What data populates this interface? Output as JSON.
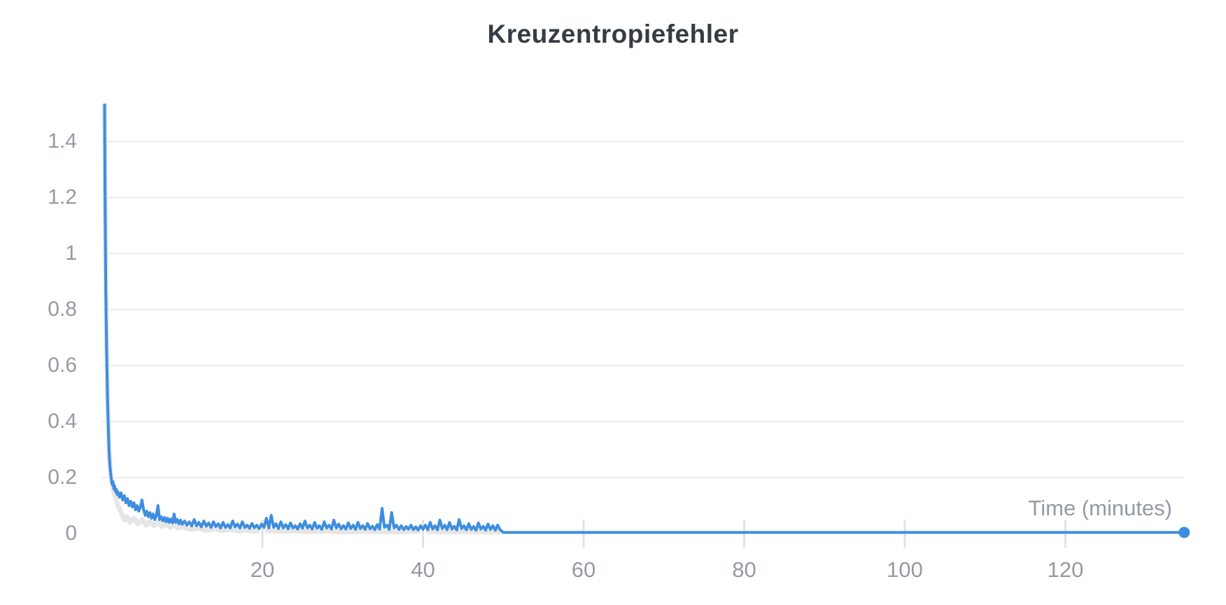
{
  "chart_data": {
    "type": "line",
    "title": "Kreuzentropiefehler",
    "xlabel": "Time (minutes)",
    "ylabel": "",
    "xlim": [
      0,
      134.8
    ],
    "ylim": [
      0,
      1.55
    ],
    "x_ticks": [
      20,
      40,
      60,
      80,
      100,
      120
    ],
    "y_ticks": [
      0,
      0.2,
      0.4,
      0.6,
      0.8,
      1,
      1.2,
      1.4
    ],
    "grid": "horizontal-only",
    "legend_position": "none",
    "colors": {
      "background": "#ffffff",
      "title": "#373c43",
      "axis_label": "#9499a4",
      "grid": "#ededed",
      "tick": "#e2e2e2",
      "line": "#3e8ede",
      "secondary_line": "#e6e6e6"
    },
    "series": [
      {
        "name": "background-trace",
        "color": "#e6e6e6",
        "stroke_width": 7,
        "end_marker": false,
        "points": [
          [
            0.35,
            1.53
          ],
          [
            0.5,
            0.9
          ],
          [
            0.7,
            0.5
          ],
          [
            0.9,
            0.3
          ],
          [
            1.1,
            0.21
          ],
          [
            1.5,
            0.15
          ],
          [
            2,
            0.1
          ],
          [
            2.5,
            0.07
          ],
          [
            2.8,
            0.05
          ],
          [
            3.1,
            0.06
          ],
          [
            3.5,
            0.04
          ],
          [
            4,
            0.055
          ],
          [
            4.5,
            0.035
          ],
          [
            5,
            0.05
          ],
          [
            5.5,
            0.03
          ],
          [
            6,
            0.045
          ],
          [
            6.5,
            0.028
          ],
          [
            7,
            0.04
          ],
          [
            7.5,
            0.025
          ],
          [
            8,
            0.035
          ],
          [
            8.5,
            0.022
          ],
          [
            9,
            0.03
          ],
          [
            9.5,
            0.02
          ],
          [
            10,
            0.025
          ],
          [
            11,
            0.015
          ],
          [
            12,
            0.02
          ],
          [
            13,
            0.012
          ],
          [
            14,
            0.018
          ],
          [
            15,
            0.01
          ],
          [
            16,
            0.015
          ],
          [
            17,
            0.009
          ],
          [
            18,
            0.013
          ],
          [
            19,
            0.008
          ],
          [
            20,
            0.012
          ],
          [
            22,
            0.008
          ],
          [
            24,
            0.01
          ],
          [
            26,
            0.007
          ],
          [
            28,
            0.009
          ],
          [
            30,
            0.006
          ],
          [
            33,
            0.008
          ],
          [
            36,
            0.006
          ],
          [
            39,
            0.008
          ],
          [
            42,
            0.006
          ],
          [
            45,
            0.007
          ],
          [
            48,
            0.006
          ],
          [
            49.5,
            0.006
          ]
        ]
      },
      {
        "name": "kreuzentropiefehler",
        "color": "#3e8ede",
        "stroke_width": 4,
        "end_marker": true,
        "points": [
          [
            0.35,
            1.53
          ],
          [
            0.4,
            1.22
          ],
          [
            0.45,
            1.02
          ],
          [
            0.5,
            0.87
          ],
          [
            0.55,
            0.75
          ],
          [
            0.6,
            0.65
          ],
          [
            0.65,
            0.57
          ],
          [
            0.7,
            0.5
          ],
          [
            0.75,
            0.44
          ],
          [
            0.8,
            0.39
          ],
          [
            0.85,
            0.34
          ],
          [
            0.9,
            0.3
          ],
          [
            0.95,
            0.27
          ],
          [
            1,
            0.245
          ],
          [
            1.1,
            0.215
          ],
          [
            1.2,
            0.19
          ],
          [
            1.3,
            0.175
          ],
          [
            1.4,
            0.185
          ],
          [
            1.5,
            0.16
          ],
          [
            1.6,
            0.17
          ],
          [
            1.7,
            0.15
          ],
          [
            1.8,
            0.158
          ],
          [
            1.9,
            0.14
          ],
          [
            2,
            0.15
          ],
          [
            2.2,
            0.13
          ],
          [
            2.4,
            0.145
          ],
          [
            2.6,
            0.12
          ],
          [
            2.8,
            0.135
          ],
          [
            3,
            0.11
          ],
          [
            3.2,
            0.125
          ],
          [
            3.4,
            0.1
          ],
          [
            3.6,
            0.115
          ],
          [
            3.8,
            0.095
          ],
          [
            4,
            0.11
          ],
          [
            4.2,
            0.085
          ],
          [
            4.4,
            0.1
          ],
          [
            4.6,
            0.08
          ],
          [
            4.8,
            0.095
          ],
          [
            5,
            0.12
          ],
          [
            5.2,
            0.085
          ],
          [
            5.4,
            0.065
          ],
          [
            5.6,
            0.08
          ],
          [
            5.8,
            0.06
          ],
          [
            6,
            0.075
          ],
          [
            6.2,
            0.055
          ],
          [
            6.4,
            0.07
          ],
          [
            6.6,
            0.05
          ],
          [
            6.8,
            0.065
          ],
          [
            7,
            0.1
          ],
          [
            7.2,
            0.05
          ],
          [
            7.4,
            0.06
          ],
          [
            7.6,
            0.045
          ],
          [
            7.8,
            0.058
          ],
          [
            8,
            0.042
          ],
          [
            8.2,
            0.055
          ],
          [
            8.4,
            0.04
          ],
          [
            8.6,
            0.052
          ],
          [
            8.8,
            0.038
          ],
          [
            9,
            0.07
          ],
          [
            9.2,
            0.04
          ],
          [
            9.4,
            0.05
          ],
          [
            9.6,
            0.035
          ],
          [
            9.8,
            0.048
          ],
          [
            10,
            0.033
          ],
          [
            10.3,
            0.045
          ],
          [
            10.6,
            0.03
          ],
          [
            10.9,
            0.042
          ],
          [
            11.2,
            0.027
          ],
          [
            11.5,
            0.05
          ],
          [
            11.8,
            0.028
          ],
          [
            12.1,
            0.04
          ],
          [
            12.4,
            0.024
          ],
          [
            12.7,
            0.045
          ],
          [
            13,
            0.026
          ],
          [
            13.3,
            0.038
          ],
          [
            13.6,
            0.022
          ],
          [
            13.9,
            0.042
          ],
          [
            14.2,
            0.025
          ],
          [
            14.5,
            0.035
          ],
          [
            14.8,
            0.02
          ],
          [
            15.1,
            0.04
          ],
          [
            15.4,
            0.022
          ],
          [
            15.7,
            0.032
          ],
          [
            16,
            0.02
          ],
          [
            16.3,
            0.045
          ],
          [
            16.6,
            0.024
          ],
          [
            16.9,
            0.034
          ],
          [
            17.2,
            0.02
          ],
          [
            17.5,
            0.042
          ],
          [
            17.8,
            0.022
          ],
          [
            18.1,
            0.03
          ],
          [
            18.4,
            0.019
          ],
          [
            18.7,
            0.036
          ],
          [
            19,
            0.021
          ],
          [
            19.3,
            0.03
          ],
          [
            19.6,
            0.018
          ],
          [
            19.9,
            0.034
          ],
          [
            20.2,
            0.022
          ],
          [
            20.5,
            0.055
          ],
          [
            20.8,
            0.02
          ],
          [
            21.1,
            0.065
          ],
          [
            21.4,
            0.022
          ],
          [
            21.7,
            0.035
          ],
          [
            22,
            0.018
          ],
          [
            22.3,
            0.042
          ],
          [
            22.6,
            0.02
          ],
          [
            22.9,
            0.032
          ],
          [
            23.2,
            0.017
          ],
          [
            23.5,
            0.038
          ],
          [
            23.8,
            0.02
          ],
          [
            24.1,
            0.028
          ],
          [
            24.4,
            0.016
          ],
          [
            24.7,
            0.035
          ],
          [
            25,
            0.019
          ],
          [
            25.3,
            0.045
          ],
          [
            25.6,
            0.02
          ],
          [
            25.9,
            0.03
          ],
          [
            26.2,
            0.016
          ],
          [
            26.5,
            0.04
          ],
          [
            26.8,
            0.019
          ],
          [
            27.1,
            0.028
          ],
          [
            27.4,
            0.015
          ],
          [
            27.7,
            0.042
          ],
          [
            28,
            0.02
          ],
          [
            28.3,
            0.03
          ],
          [
            28.6,
            0.016
          ],
          [
            28.9,
            0.048
          ],
          [
            29.2,
            0.02
          ],
          [
            29.5,
            0.034
          ],
          [
            29.8,
            0.017
          ],
          [
            30.1,
            0.028
          ],
          [
            30.4,
            0.016
          ],
          [
            30.7,
            0.038
          ],
          [
            31,
            0.018
          ],
          [
            31.3,
            0.03
          ],
          [
            31.6,
            0.015
          ],
          [
            31.9,
            0.04
          ],
          [
            32.2,
            0.018
          ],
          [
            32.5,
            0.028
          ],
          [
            32.8,
            0.015
          ],
          [
            33.1,
            0.036
          ],
          [
            33.4,
            0.017
          ],
          [
            33.7,
            0.026
          ],
          [
            34,
            0.014
          ],
          [
            34.3,
            0.032
          ],
          [
            34.6,
            0.016
          ],
          [
            34.9,
            0.09
          ],
          [
            35.2,
            0.022
          ],
          [
            35.5,
            0.03
          ],
          [
            35.8,
            0.015
          ],
          [
            36.1,
            0.075
          ],
          [
            36.4,
            0.02
          ],
          [
            36.7,
            0.03
          ],
          [
            37,
            0.015
          ],
          [
            37.3,
            0.028
          ],
          [
            37.6,
            0.014
          ],
          [
            37.9,
            0.025
          ],
          [
            38.2,
            0.016
          ],
          [
            38.5,
            0.03
          ],
          [
            38.8,
            0.014
          ],
          [
            39.1,
            0.024
          ],
          [
            39.4,
            0.013
          ],
          [
            39.7,
            0.028
          ],
          [
            40,
            0.015
          ],
          [
            40.3,
            0.03
          ],
          [
            40.6,
            0.014
          ],
          [
            40.9,
            0.04
          ],
          [
            41.2,
            0.016
          ],
          [
            41.5,
            0.028
          ],
          [
            41.8,
            0.013
          ],
          [
            42.1,
            0.048
          ],
          [
            42.4,
            0.018
          ],
          [
            42.7,
            0.03
          ],
          [
            43,
            0.014
          ],
          [
            43.3,
            0.04
          ],
          [
            43.6,
            0.016
          ],
          [
            43.9,
            0.026
          ],
          [
            44.2,
            0.013
          ],
          [
            44.5,
            0.05
          ],
          [
            44.8,
            0.018
          ],
          [
            45.1,
            0.028
          ],
          [
            45.4,
            0.013
          ],
          [
            45.7,
            0.035
          ],
          [
            46,
            0.015
          ],
          [
            46.3,
            0.025
          ],
          [
            46.6,
            0.012
          ],
          [
            46.9,
            0.038
          ],
          [
            47.2,
            0.016
          ],
          [
            47.5,
            0.026
          ],
          [
            47.8,
            0.012
          ],
          [
            48.1,
            0.034
          ],
          [
            48.4,
            0.015
          ],
          [
            48.7,
            0.028
          ],
          [
            49,
            0.012
          ],
          [
            49.3,
            0.03
          ],
          [
            49.6,
            0.014
          ],
          [
            50,
            0.004
          ],
          [
            134.8,
            0.004
          ]
        ]
      }
    ]
  }
}
